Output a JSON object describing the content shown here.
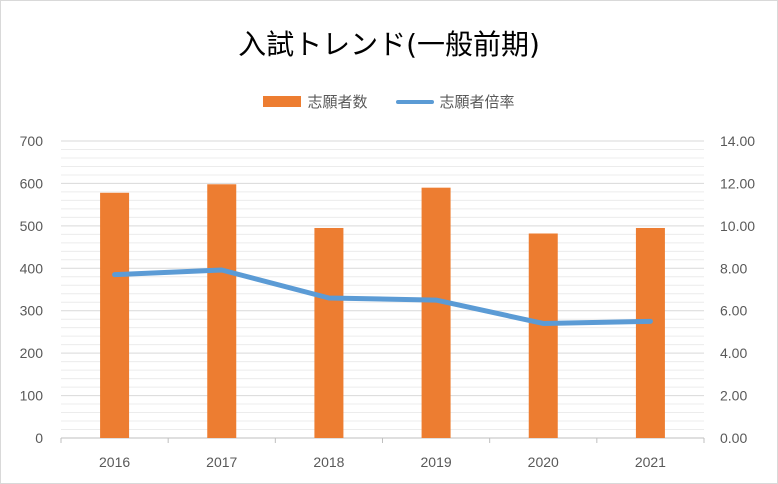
{
  "chart_data": {
    "type": "bar",
    "title": "入試トレンド(一般前期)",
    "categories": [
      "2016",
      "2017",
      "2018",
      "2019",
      "2020",
      "2021"
    ],
    "series": [
      {
        "name": "志願者数",
        "type": "bar",
        "axis": "left",
        "values": [
          578,
          598,
          495,
          590,
          482,
          495
        ]
      },
      {
        "name": "志願者倍率",
        "type": "line",
        "axis": "right",
        "values": [
          7.7,
          7.92,
          6.6,
          6.5,
          5.4,
          5.5
        ]
      }
    ],
    "y_left": {
      "ylim": [
        0,
        700
      ],
      "ticks": [
        "0",
        "100",
        "200",
        "300",
        "400",
        "500",
        "600",
        "700"
      ]
    },
    "y_right": {
      "ylim": [
        0,
        14
      ],
      "ticks": [
        "0.00",
        "2.00",
        "4.00",
        "6.00",
        "8.00",
        "10.00",
        "12.00",
        "14.00"
      ]
    },
    "grid": true,
    "legend_position": "top",
    "colors": {
      "bar": "#ED7D31",
      "line": "#5B9BD5",
      "grid": "#d9d9d9",
      "text": "#595959"
    }
  }
}
